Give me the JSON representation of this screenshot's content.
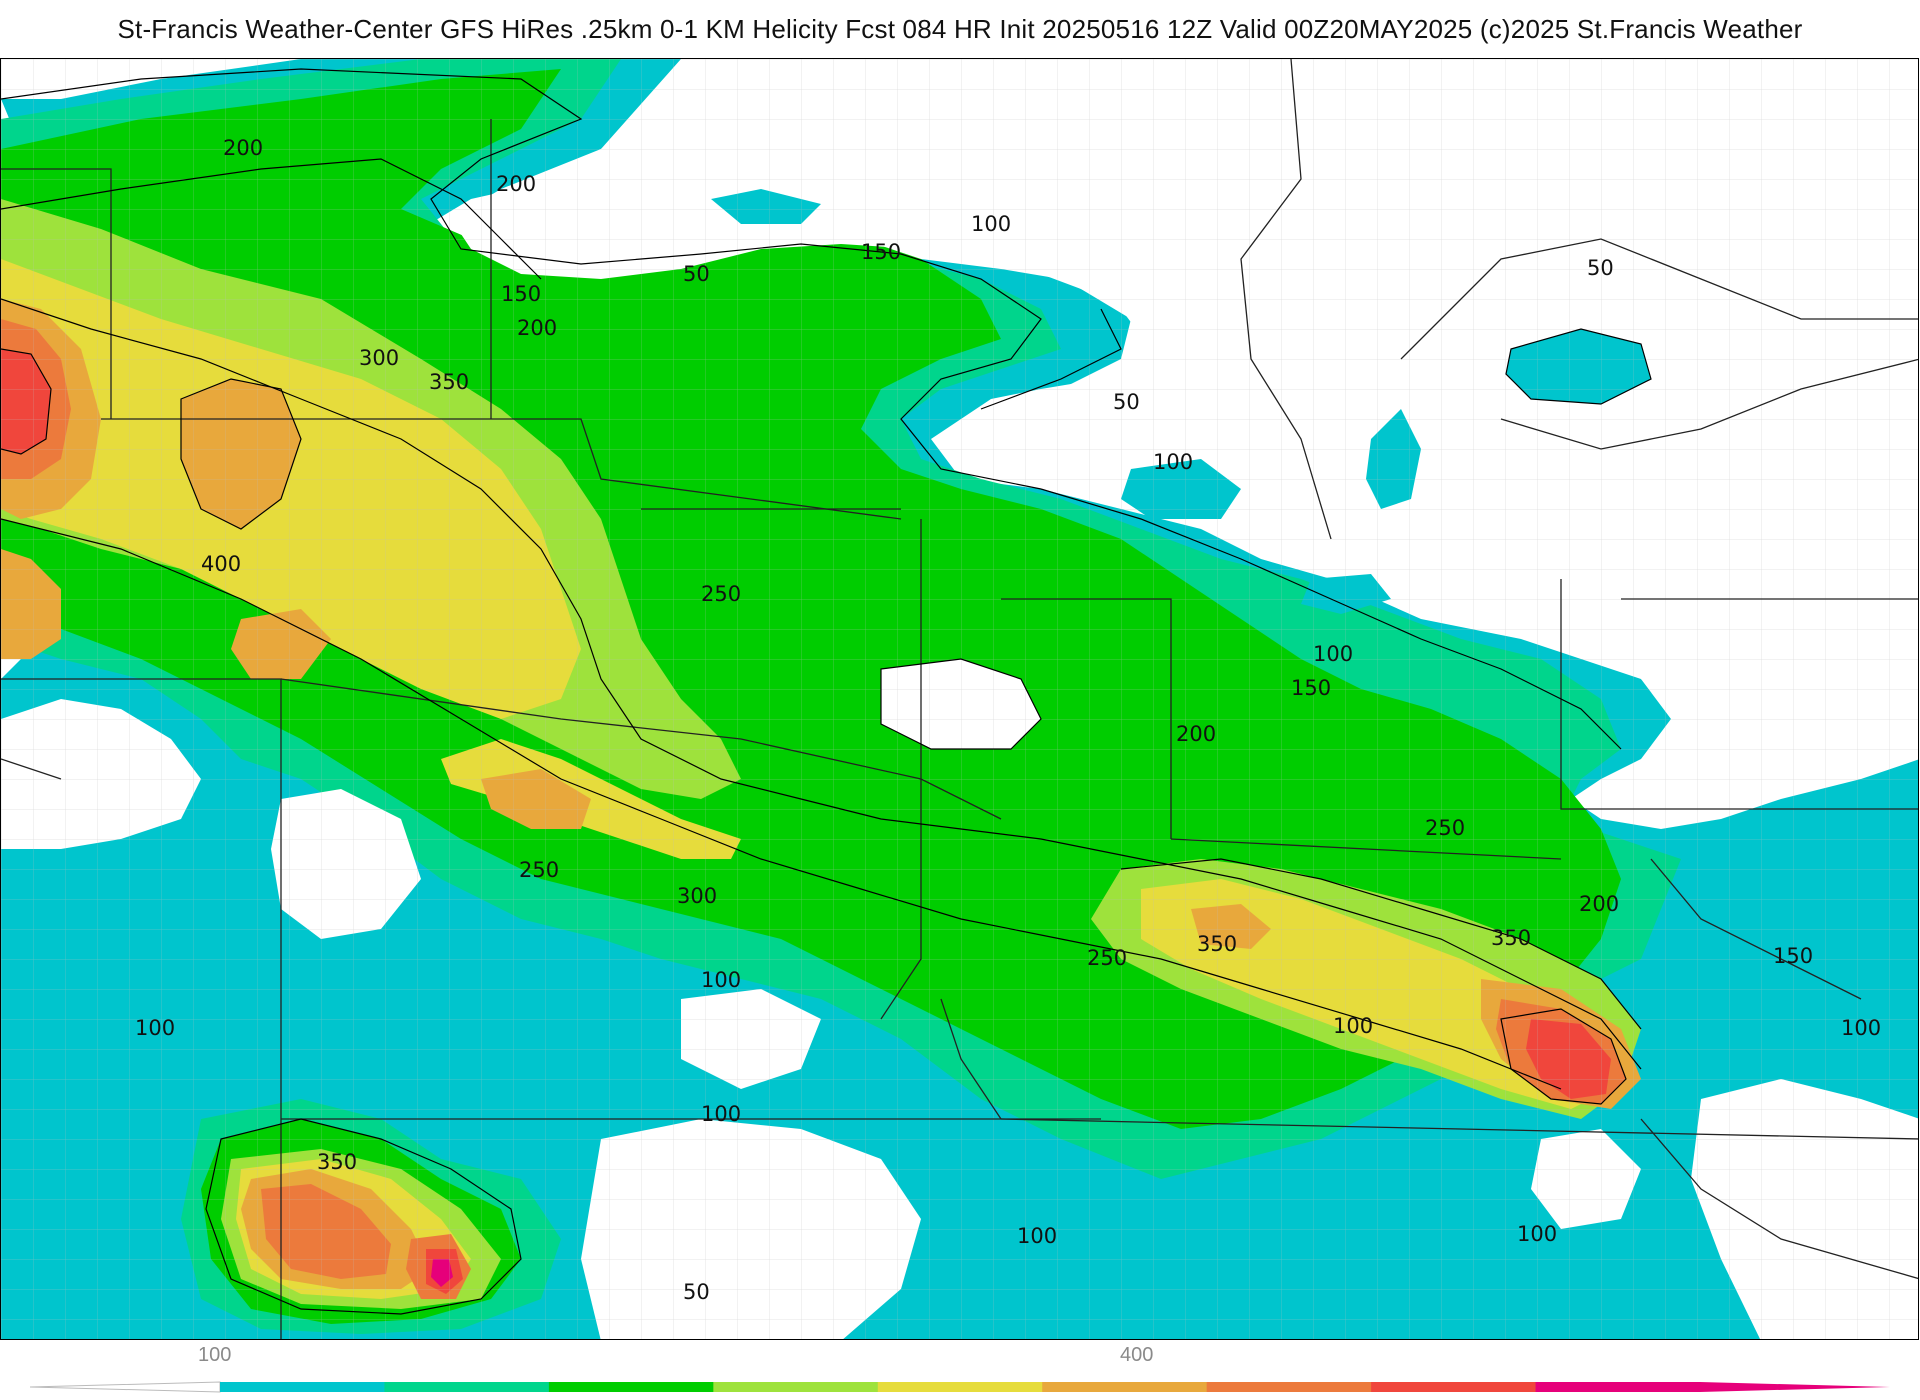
{
  "title": "St-Francis Weather-Center GFS HiRes .25km 0-1 KM Helicity Fcst 084 HR Init 20250516 12Z  Valid 00Z20MAY2025    (c)2025 St.Francis Weather",
  "map": {
    "product": "0-1 KM Helicity",
    "field_bins": [
      {
        "min": 50,
        "max": 100,
        "color": "#ffffff"
      },
      {
        "min": 100,
        "max": 150,
        "color": "#00c5cd"
      },
      {
        "min": 150,
        "max": 200,
        "color": "#00d58c"
      },
      {
        "min": 200,
        "max": 250,
        "color": "#00cd00"
      },
      {
        "min": 250,
        "max": 300,
        "color": "#9ee23c"
      },
      {
        "min": 300,
        "max": 350,
        "color": "#e6dc3c"
      },
      {
        "min": 350,
        "max": 400,
        "color": "#e8a83c"
      },
      {
        "min": 400,
        "max": 450,
        "color": "#ec7a3c"
      },
      {
        "min": 450,
        "max": 500,
        "color": "#f0463c"
      },
      {
        "min": 500,
        "max": 550,
        "color": "#e6007a"
      }
    ],
    "contour_labels": [
      "200",
      "200",
      "150",
      "50",
      "150",
      "100",
      "50",
      "200",
      "300",
      "350",
      "400",
      "250",
      "50",
      "100",
      "100",
      "150",
      "200",
      "250",
      "350",
      "250",
      "250",
      "300",
      "100",
      "100",
      "100",
      "200",
      "350",
      "150",
      "100",
      "100",
      "100",
      "350",
      "50",
      "100"
    ]
  },
  "colorbar": {
    "tick_labels": [
      "100",
      "400"
    ],
    "colors": [
      "#00c5cd",
      "#00d58c",
      "#00cd00",
      "#9ee23c",
      "#e6dc3c",
      "#e8a83c",
      "#ec7a3c",
      "#f0463c",
      "#e6007a"
    ]
  }
}
